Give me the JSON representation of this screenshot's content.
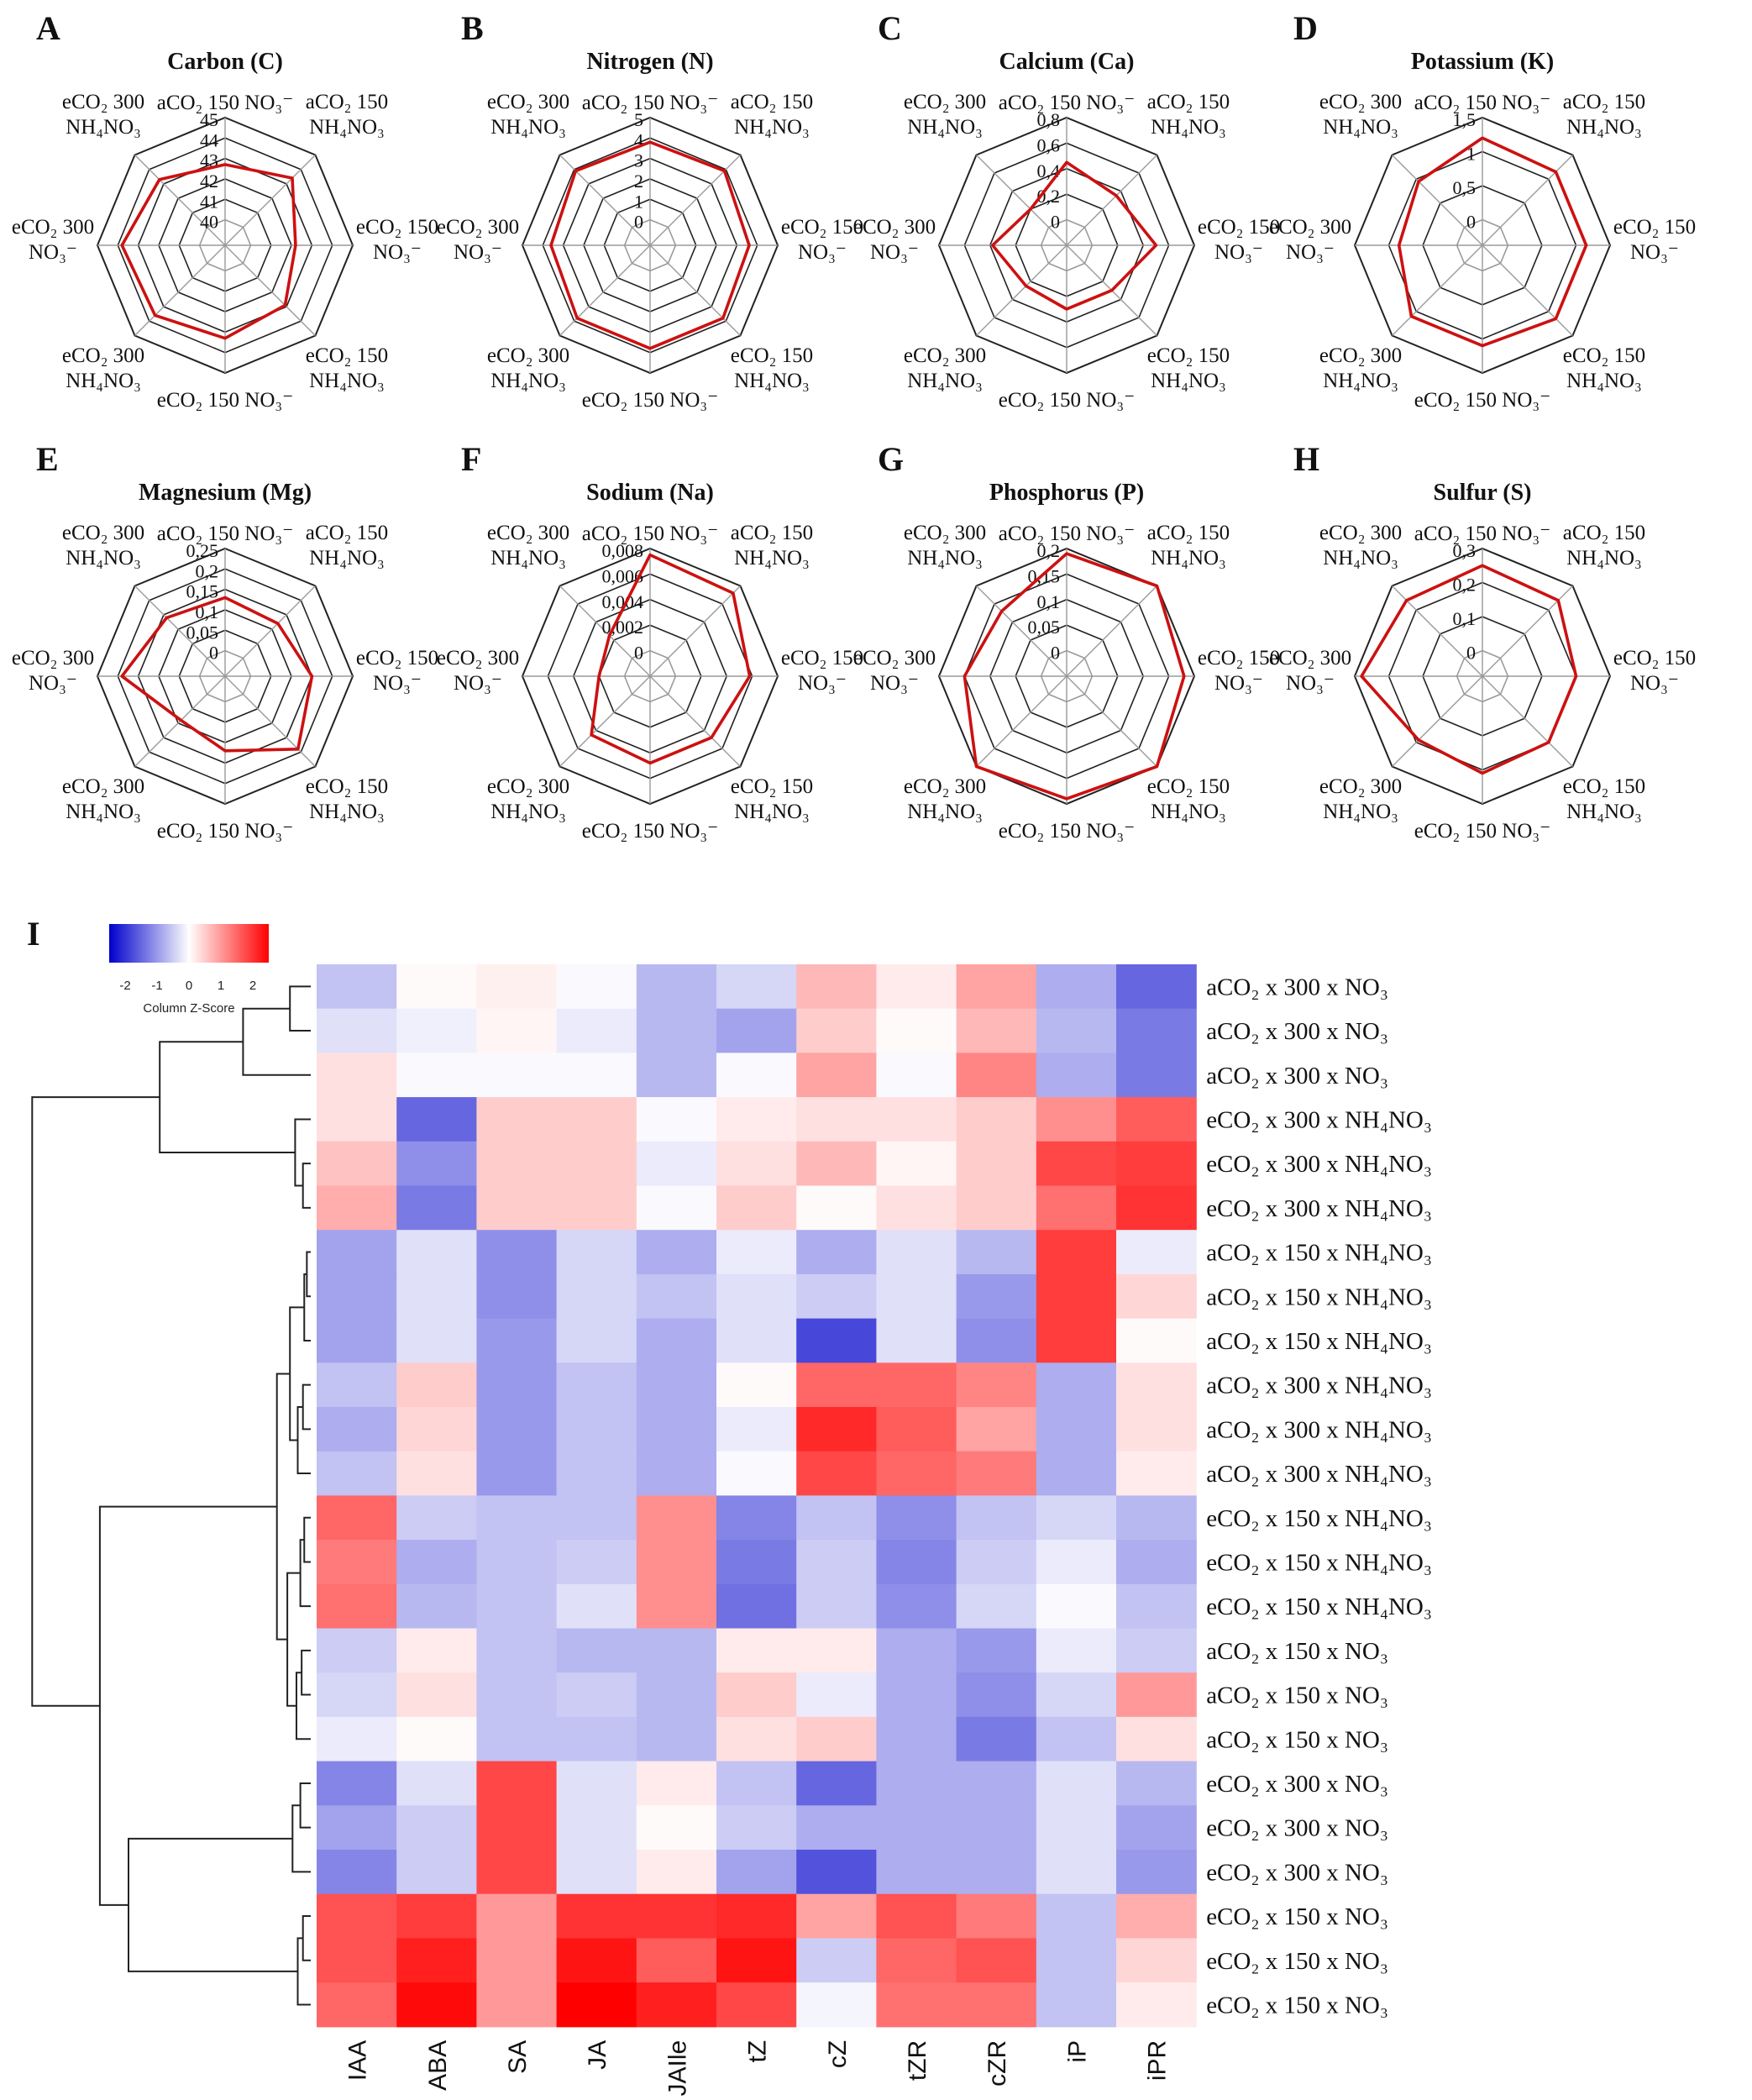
{
  "figure": {
    "heatmap_panel_letter": "I",
    "color_key": {
      "label": "Column Z-Score",
      "ticks": [
        "-2",
        "-1",
        "0",
        "1",
        "2"
      ],
      "range": [
        -2.5,
        2.5
      ],
      "colors": {
        "low": "#0000cc",
        "mid": "#ffffff",
        "high": "#ff0000"
      }
    }
  },
  "chart_data": [
    {
      "type": "radar",
      "panel": "A",
      "title": "Carbon (C)",
      "axes": [
        "aCO₂ 150 NO₃⁻",
        "aCO₂ 150 NH₄NO₃",
        "eCO₂ 150 NO₃⁻",
        "eCO₂ 150 NH₄NO₃",
        "eCO₂ 150 NO₃⁻",
        "eCO₂ 300 NH₄NO₃",
        "eCO₂ 300 NO₃⁻",
        "eCO₂ 300 NH₄NO₃"
      ],
      "ticks": [
        "40",
        "41",
        "42",
        "43",
        "44",
        "45"
      ],
      "range": [
        40,
        45
      ],
      "values": [
        42.7,
        43.4,
        42.2,
        42.9,
        43.3,
        43.6,
        43.8,
        43.3
      ],
      "line_color": "#cc1111"
    },
    {
      "type": "radar",
      "panel": "B",
      "title": "Nitrogen (N)",
      "axes": [
        "aCO₂ 150 NO₃⁻",
        "aCO₂ 150 NH₄NO₃",
        "eCO₂ 150 NO₃⁻",
        "eCO₂ 150 NH₄NO₃",
        "eCO₂ 150 NO₃⁻",
        "eCO₂ 300 NH₄NO₃",
        "eCO₂ 300 NO₃⁻",
        "eCO₂ 300 NH₄NO₃"
      ],
      "ticks": [
        "0",
        "1",
        "2",
        "3",
        "4",
        "5"
      ],
      "range": [
        0,
        5
      ],
      "values": [
        3.8,
        3.9,
        3.6,
        3.8,
        3.8,
        3.8,
        3.6,
        3.9
      ],
      "line_color": "#cc1111"
    },
    {
      "type": "radar",
      "panel": "C",
      "title": "Calcium (Ca)",
      "axes": [
        "aCO₂ 150 NO₃⁻",
        "aCO₂ 150 NH₄NO₃",
        "eCO₂ 150 NO₃⁻",
        "eCO₂ 150 NH₄NO₃",
        "eCO₂ 150 NO₃⁻",
        "eCO₂ 300 NH₄NO₃",
        "eCO₂ 300 NO₃⁻",
        "eCO₂ 300 NH₄NO₃"
      ],
      "ticks": [
        "0",
        "0,2",
        "0,4",
        "0,6",
        "0,8"
      ],
      "range": [
        0,
        0.8
      ],
      "values": [
        0.45,
        0.35,
        0.5,
        0.3,
        0.3,
        0.25,
        0.38,
        0.2
      ],
      "line_color": "#cc1111"
    },
    {
      "type": "radar",
      "panel": "D",
      "title": "Potassium (K)",
      "axes": [
        "aCO₂ 150 NO₃⁻",
        "aCO₂ 150 NH₄NO₃",
        "eCO₂ 150 NO₃⁻",
        "eCO₂ 150 NH₄NO₃",
        "eCO₂ 150 NO₃⁻",
        "eCO₂ 300 NH₄NO₃",
        "eCO₂ 300 NO₃⁻",
        "eCO₂ 300 NH₄NO₃"
      ],
      "ticks": [
        "0",
        "0,5",
        "1",
        "1,5"
      ],
      "range": [
        0,
        1.5
      ],
      "values": [
        1.2,
        1.15,
        1.15,
        1.15,
        1.1,
        1.1,
        0.85,
        0.95
      ],
      "line_color": "#cc1111"
    },
    {
      "type": "radar",
      "panel": "E",
      "title": "Magnesium (Mg)",
      "axes": [
        "aCO₂ 150 NO₃⁻",
        "aCO₂ 150 NH₄NO₃",
        "eCO₂ 150 NO₃⁻",
        "eCO₂ 150 NH₄NO₃",
        "eCO₂ 150 NO₃⁻",
        "eCO₂ 300 NH₄NO₃",
        "eCO₂ 300 NO₃⁻",
        "eCO₂ 300 NH₄NO₃"
      ],
      "ticks": [
        "0",
        "0,05",
        "0,1",
        "0,15",
        "0,2",
        "0,25"
      ],
      "range": [
        0,
        0.25
      ],
      "values": [
        0.13,
        0.12,
        0.15,
        0.19,
        0.12,
        0.09,
        0.19,
        0.14
      ],
      "line_color": "#cc1111"
    },
    {
      "type": "radar",
      "panel": "F",
      "title": "Sodium (Na)",
      "axes": [
        "aCO₂ 150 NO₃⁻",
        "aCO₂ 150 NH₄NO₃",
        "eCO₂ 150 NO₃⁻",
        "eCO₂ 150 NH₄NO₃",
        "eCO₂ 150 NO₃⁻",
        "eCO₂ 300 NH₄NO₃",
        "eCO₂ 300 NO₃⁻",
        "eCO₂ 300 NH₄NO₃"
      ],
      "ticks": [
        "0",
        "0,002",
        "0,004",
        "0,006",
        "0,008"
      ],
      "range": [
        0,
        0.008
      ],
      "values": [
        0.0075,
        0.0072,
        0.0058,
        0.0048,
        0.0048,
        0.0045,
        0.002,
        0.0025
      ],
      "line_color": "#cc1111"
    },
    {
      "type": "radar",
      "panel": "G",
      "title": "Phosphorus (P)",
      "axes": [
        "aCO₂ 150 NO₃⁻",
        "aCO₂ 150 NH₄NO₃",
        "eCO₂ 150 NO₃⁻",
        "eCO₂ 150 NH₄NO₃",
        "eCO₂ 150 NO₃⁻",
        "eCO₂ 300 NH₄NO₃",
        "eCO₂ 300 NO₃⁻",
        "eCO₂ 300 NH₄NO₃"
      ],
      "ticks": [
        "0",
        "0,05",
        "0,1",
        "0,15",
        "0,2"
      ],
      "range": [
        0,
        0.2
      ],
      "values": [
        0.19,
        0.2,
        0.18,
        0.2,
        0.19,
        0.22,
        0.15,
        0.13
      ],
      "line_color": "#cc1111"
    },
    {
      "type": "radar",
      "panel": "H",
      "title": "Sulfur (S)",
      "axes": [
        "aCO₂ 150 NO₃⁻",
        "aCO₂ 150 NH₄NO₃",
        "eCO₂ 150 NO₃⁻",
        "eCO₂ 150 NH₄NO₃",
        "eCO₂ 150 NO₃⁻",
        "eCO₂ 300 NH₄NO₃",
        "eCO₂ 300 NO₃⁻",
        "eCO₂ 300 NH₄NO₃"
      ],
      "ticks": [
        "0",
        "0,1",
        "0,2",
        "0,3"
      ],
      "range": [
        0,
        0.3
      ],
      "values": [
        0.25,
        0.24,
        0.2,
        0.2,
        0.21,
        0.19,
        0.28,
        0.24
      ],
      "line_color": "#cc1111"
    },
    {
      "type": "heatmap",
      "panel": "I",
      "columns": [
        "IAA",
        "ABA",
        "SA",
        "JA",
        "JAIle",
        "tZ",
        "cZ",
        "tZR",
        "cZR",
        "iP",
        "iPR"
      ],
      "rows": [
        "aCO₂ x 300 x NO₃",
        "aCO₂ x 300 x NO₃",
        "aCO₂ x 300 x NO₃",
        "eCO₂ x 300 x NH₄NO₃",
        "eCO₂ x 300 x NH₄NO₃",
        "eCO₂ x 300 x NH₄NO₃",
        "aCO₂ x 150 x NH₄NO₃",
        "aCO₂ x 150 x NH₄NO₃",
        "aCO₂ x 150 x NH₄NO₃",
        "aCO₂ x 300 x NH₄NO₃",
        "aCO₂ x 300 x NH₄NO₃",
        "aCO₂ x 300 x NH₄NO₃",
        "eCO₂ x 150 x NH₄NO₃",
        "eCO₂ x 150 x NH₄NO₃",
        "eCO₂ x 150 x NH₄NO₃",
        "aCO₂ x 150 x NO₃",
        "aCO₂ x 150 x NO₃",
        "aCO₂ x 150 x NO₃",
        "eCO₂ x 300 x NO₃",
        "eCO₂ x 300 x NO₃",
        "eCO₂ x 300 x NO₃",
        "eCO₂ x 150 x NO₃",
        "eCO₂ x 150 x NO₃",
        "eCO₂ x 150 x NO₃"
      ],
      "values": [
        [
          -0.6,
          0.05,
          0.15,
          -0.05,
          -0.7,
          -0.4,
          0.7,
          0.2,
          0.9,
          -0.8,
          -1.5
        ],
        [
          -0.3,
          -0.15,
          0.1,
          -0.2,
          -0.7,
          -0.9,
          0.5,
          0.05,
          0.7,
          -0.7,
          -1.3
        ],
        [
          0.3,
          -0.05,
          -0.05,
          -0.05,
          -0.7,
          -0.05,
          0.9,
          -0.05,
          1.2,
          -0.8,
          -1.3
        ],
        [
          0.3,
          -1.5,
          0.5,
          0.5,
          -0.05,
          0.2,
          0.3,
          0.3,
          0.5,
          1.1,
          1.6
        ],
        [
          0.6,
          -1.1,
          0.5,
          0.5,
          -0.2,
          0.3,
          0.7,
          0.1,
          0.5,
          1.8,
          1.9
        ],
        [
          0.8,
          -1.3,
          0.5,
          0.5,
          -0.05,
          0.5,
          0.05,
          0.3,
          0.5,
          1.4,
          2.0
        ],
        [
          -0.9,
          -0.3,
          -1.1,
          -0.4,
          -0.8,
          -0.2,
          -0.8,
          -0.3,
          -0.7,
          1.9,
          -0.2
        ],
        [
          -0.9,
          -0.3,
          -1.1,
          -0.4,
          -0.6,
          -0.3,
          -0.5,
          -0.3,
          -1.0,
          1.9,
          0.4
        ],
        [
          -0.9,
          -0.3,
          -1.0,
          -0.4,
          -0.8,
          -0.3,
          -1.8,
          -0.3,
          -1.1,
          1.9,
          0.05
        ],
        [
          -0.6,
          0.5,
          -1.0,
          -0.6,
          -0.8,
          0.05,
          1.5,
          1.5,
          1.2,
          -0.8,
          0.3
        ],
        [
          -0.8,
          0.4,
          -1.0,
          -0.6,
          -0.8,
          -0.2,
          2.1,
          1.6,
          0.9,
          -0.8,
          0.3
        ],
        [
          -0.6,
          0.3,
          -1.0,
          -0.6,
          -0.8,
          -0.05,
          1.8,
          1.5,
          1.3,
          -0.8,
          0.2
        ],
        [
          1.5,
          -0.5,
          -0.6,
          -0.6,
          1.1,
          -1.2,
          -0.6,
          -1.1,
          -0.6,
          -0.4,
          -0.7
        ],
        [
          1.3,
          -0.8,
          -0.6,
          -0.5,
          1.1,
          -1.3,
          -0.5,
          -1.2,
          -0.5,
          -0.2,
          -0.8
        ],
        [
          1.4,
          -0.7,
          -0.6,
          -0.3,
          1.1,
          -1.4,
          -0.5,
          -1.1,
          -0.4,
          -0.05,
          -0.6
        ],
        [
          -0.5,
          0.2,
          -0.6,
          -0.7,
          -0.7,
          0.2,
          0.2,
          -0.8,
          -1.0,
          -0.2,
          -0.5
        ],
        [
          -0.4,
          0.3,
          -0.6,
          -0.5,
          -0.7,
          0.5,
          -0.2,
          -0.8,
          -1.1,
          -0.4,
          1.0
        ],
        [
          -0.2,
          0.05,
          -0.6,
          -0.6,
          -0.7,
          0.3,
          0.5,
          -0.8,
          -1.3,
          -0.6,
          0.3
        ],
        [
          -1.2,
          -0.3,
          1.8,
          -0.3,
          0.2,
          -0.6,
          -1.5,
          -0.8,
          -0.8,
          -0.3,
          -0.7
        ],
        [
          -0.9,
          -0.5,
          1.8,
          -0.3,
          0.05,
          -0.5,
          -0.8,
          -0.8,
          -0.8,
          -0.3,
          -0.9
        ],
        [
          -1.2,
          -0.5,
          1.8,
          -0.3,
          0.2,
          -0.9,
          -1.7,
          -0.8,
          -0.8,
          -0.3,
          -1.0
        ],
        [
          1.7,
          1.9,
          1.0,
          2.0,
          2.0,
          2.1,
          0.9,
          1.7,
          1.3,
          -0.6,
          0.8
        ],
        [
          1.7,
          2.2,
          1.0,
          2.3,
          1.6,
          2.3,
          -0.5,
          1.5,
          1.7,
          -0.6,
          0.4
        ],
        [
          1.5,
          2.4,
          1.0,
          2.6,
          2.2,
          1.8,
          -0.1,
          1.4,
          1.4,
          -0.6,
          0.2
        ]
      ]
    }
  ]
}
